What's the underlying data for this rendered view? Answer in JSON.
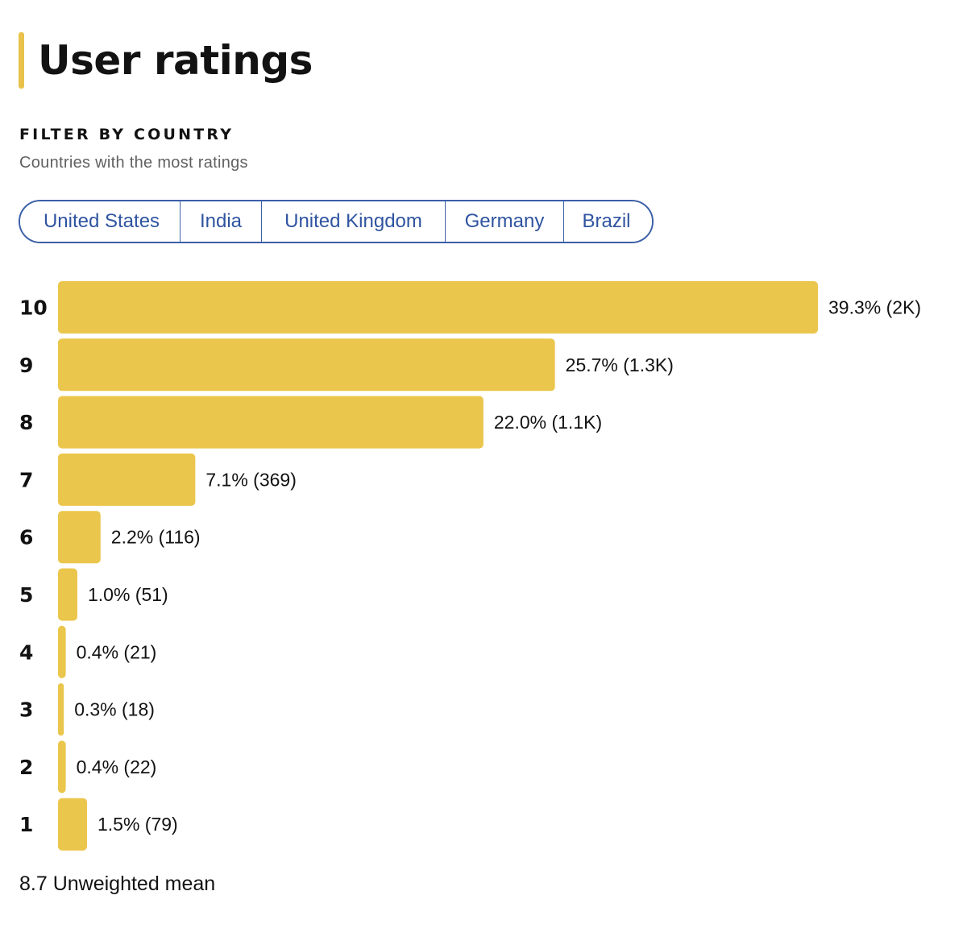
{
  "header": {
    "title": "User ratings"
  },
  "filter": {
    "heading": "FILTER BY COUNTRY",
    "subtitle": "Countries with the most ratings",
    "countries": [
      "United States",
      "India",
      "United Kingdom",
      "Germany",
      "Brazil"
    ]
  },
  "colors": {
    "accent": "#E8C24A",
    "bar": "#EBC64C",
    "link": "#2F54A0"
  },
  "chart_data": {
    "type": "bar",
    "orientation": "horizontal",
    "categories": [
      "10",
      "9",
      "8",
      "7",
      "6",
      "5",
      "4",
      "3",
      "2",
      "1"
    ],
    "values": [
      39.3,
      25.7,
      22.0,
      7.1,
      2.2,
      1.0,
      0.4,
      0.3,
      0.4,
      1.5
    ],
    "counts": [
      "2K",
      "1.3K",
      "1.1K",
      "369",
      "116",
      "51",
      "21",
      "18",
      "22",
      "79"
    ],
    "data_labels": [
      "39.3% (2K)",
      "25.7% (1.3K)",
      "22.0% (1.1K)",
      "7.1% (369)",
      "2.2% (116)",
      "1.0% (51)",
      "0.4% (21)",
      "0.3% (18)",
      "0.4% (22)",
      "1.5% (79)"
    ],
    "unit": "%",
    "grid": false,
    "legend": "none"
  },
  "summary": {
    "mean_text": "8.7 Unweighted mean"
  }
}
